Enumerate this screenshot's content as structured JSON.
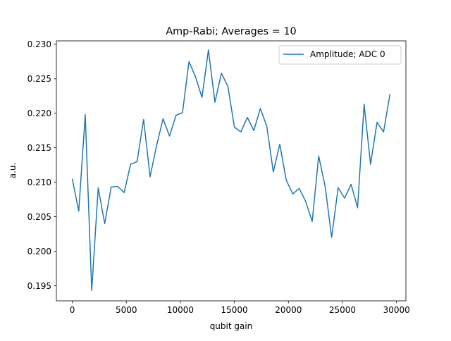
{
  "chart_data": {
    "type": "line",
    "title": "Amp-Rabi; Averages = 10",
    "xlabel": "qubit gain",
    "ylabel": "a.u.",
    "xlim": [
      -1470,
      30870
    ],
    "ylim": [
      0.1928,
      0.2305
    ],
    "xticks": [
      0,
      5000,
      10000,
      15000,
      20000,
      25000,
      30000
    ],
    "xtick_labels": [
      "0",
      "5000",
      "10000",
      "15000",
      "20000",
      "25000",
      "30000"
    ],
    "yticks": [
      0.195,
      0.2,
      0.205,
      0.21,
      0.215,
      0.22,
      0.225,
      0.23
    ],
    "ytick_labels": [
      "0.195",
      "0.200",
      "0.205",
      "0.210",
      "0.215",
      "0.220",
      "0.225",
      "0.230"
    ],
    "grid": false,
    "legend_position": "top-right",
    "series": [
      {
        "name": "Amplitude; ADC 0",
        "color": "#1f77b4",
        "x": [
          0,
          600,
          1200,
          1800,
          2400,
          3000,
          3600,
          4200,
          4800,
          5400,
          6000,
          6600,
          7200,
          7800,
          8400,
          9000,
          9600,
          10200,
          10800,
          11400,
          12000,
          12600,
          13200,
          13800,
          14400,
          15000,
          15600,
          16200,
          16800,
          17400,
          18000,
          18600,
          19200,
          19800,
          20400,
          21000,
          21600,
          22200,
          22800,
          23400,
          24000,
          24600,
          25200,
          25800,
          26400,
          27000,
          27600,
          28200,
          28800,
          29400
        ],
        "y": [
          0.2105,
          0.2058,
          0.2198,
          0.1943,
          0.2092,
          0.204,
          0.2093,
          0.2094,
          0.2085,
          0.2126,
          0.213,
          0.2191,
          0.2108,
          0.2153,
          0.2192,
          0.2167,
          0.2197,
          0.2201,
          0.2275,
          0.2253,
          0.2223,
          0.2292,
          0.2216,
          0.2258,
          0.2239,
          0.218,
          0.2173,
          0.2194,
          0.2175,
          0.2207,
          0.2181,
          0.2115,
          0.2155,
          0.2103,
          0.2083,
          0.2091,
          0.2072,
          0.2043,
          0.2138,
          0.2094,
          0.202,
          0.2092,
          0.2077,
          0.2097,
          0.2063,
          0.2213,
          0.2126,
          0.2187,
          0.2173,
          0.2228
        ]
      }
    ]
  }
}
